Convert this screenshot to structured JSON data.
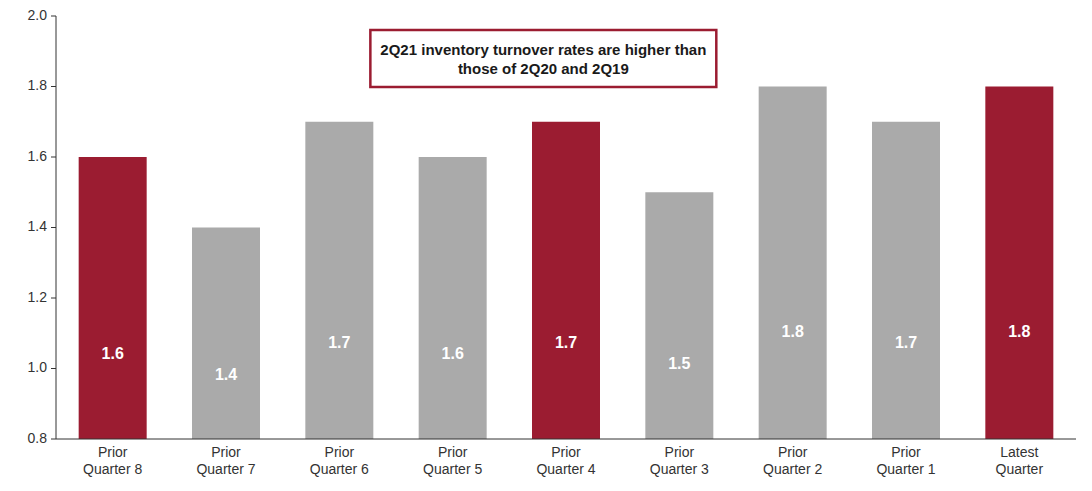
{
  "chart_data": {
    "type": "bar",
    "categories": [
      "Prior\nQuarter 8",
      "Prior\nQuarter 7",
      "Prior\nQuarter 6",
      "Prior\nQuarter 5",
      "Prior\nQuarter 4",
      "Prior\nQuarter 3",
      "Prior\nQuarter 2",
      "Prior\nQuarter 1",
      "Latest\nQuarter"
    ],
    "values": [
      1.6,
      1.4,
      1.7,
      1.6,
      1.7,
      1.5,
      1.8,
      1.7,
      1.8
    ],
    "colors": [
      "#9B1C31",
      "#AAAAAA",
      "#AAAAAA",
      "#AAAAAA",
      "#9B1C31",
      "#AAAAAA",
      "#AAAAAA",
      "#AAAAAA",
      "#9B1C31"
    ],
    "ylim": [
      0.8,
      2.0
    ],
    "yticks": [
      0.8,
      {
        "value": 1.0,
        "label": "1.0"
      },
      1.2,
      1.4,
      1.6,
      1.8,
      {
        "value": 2.0,
        "label": "2.0"
      }
    ],
    "data_labels": true,
    "grid": false,
    "annotations": [
      {
        "text": "2Q21 inventory turnover rates are higher than\nthose of 2Q20 and 2Q19",
        "color": "#9B1C31"
      }
    ]
  }
}
